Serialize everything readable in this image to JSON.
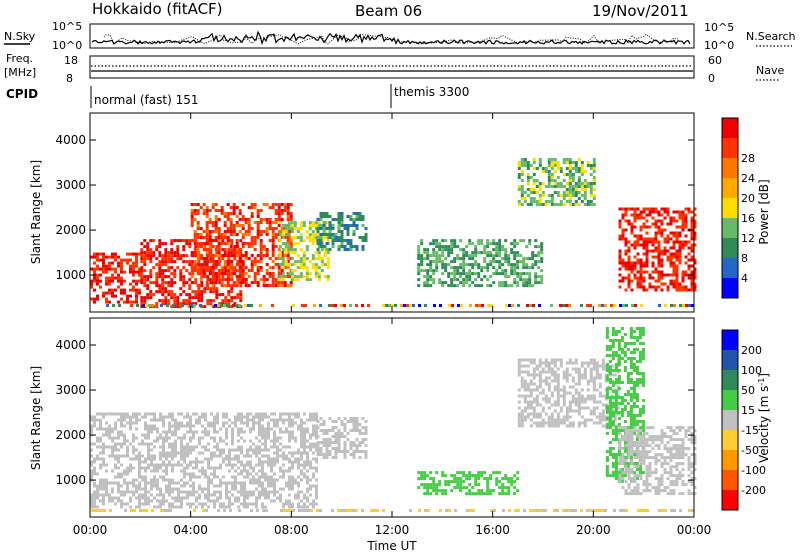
{
  "header": {
    "station": "Hokkaido (fitACF)",
    "beam": "Beam 06",
    "date": "19/Nov/2011"
  },
  "summary_labels": {
    "nsky": "N.Sky",
    "nsky_top": "10^5",
    "nsky_bottom": "10^0",
    "nsearch": "N.Search",
    "nsky_right_top": "10^5",
    "nsky_right_bottom": "10^0",
    "freq_line1": "Freq.",
    "freq_line2": "[MHz]",
    "freq_top": "18",
    "freq_bottom": "8",
    "nave": "Nave",
    "nave_top": "60",
    "nave_bottom": "0",
    "cpid": "CPID"
  },
  "cpid_modes": [
    {
      "label": "normal (fast) 151",
      "start_hour": 0
    },
    {
      "label": "themis 3300",
      "start_hour": 12
    }
  ],
  "colors": {
    "power": [
      "#0000ff",
      "#2266cc",
      "#2e8b57",
      "#66bb66",
      "#ffdd00",
      "#ffaa00",
      "#ff7700",
      "#ff3300",
      "#ee0000"
    ],
    "velocity": [
      "#0000ff",
      "#2255aa",
      "#2e8b57",
      "#44cc44",
      "#c0c0c0",
      "#ffcc33",
      "#ff9900",
      "#ff5500",
      "#ff0000"
    ]
  },
  "chart_data": [
    {
      "type": "heatmap",
      "title": "",
      "xlabel": "",
      "ylabel": "Slant Range [km]",
      "xlim": [
        0,
        24
      ],
      "ylim": [
        180,
        4600
      ],
      "xticks": [
        "00:00",
        "04:00",
        "08:00",
        "12:00",
        "16:00",
        "20:00",
        "00:00"
      ],
      "yticks": [
        1000,
        2000,
        3000,
        4000
      ],
      "colorbar": {
        "label": "Power [dB]",
        "ticks": [
          4,
          8,
          12,
          16,
          20,
          24,
          28
        ]
      },
      "regions": [
        {
          "x": [
            0,
            2
          ],
          "y": [
            400,
            1500
          ],
          "value": 28
        },
        {
          "x": [
            2,
            6
          ],
          "y": [
            300,
            1800
          ],
          "value": 28
        },
        {
          "x": [
            4,
            8
          ],
          "y": [
            800,
            2600
          ],
          "value": 26
        },
        {
          "x": [
            7.5,
            9.5
          ],
          "y": [
            900,
            2200
          ],
          "value": 12
        },
        {
          "x": [
            9,
            11
          ],
          "y": [
            1600,
            2400
          ],
          "value": 6
        },
        {
          "x": [
            13,
            18
          ],
          "y": [
            800,
            1800
          ],
          "value": 8
        },
        {
          "x": [
            17,
            20
          ],
          "y": [
            2600,
            3600
          ],
          "value": 10
        },
        {
          "x": [
            21,
            24
          ],
          "y": [
            700,
            2500
          ],
          "value": 28
        }
      ]
    },
    {
      "type": "heatmap",
      "title": "",
      "xlabel": "Time UT",
      "ylabel": "Slant Range [km]",
      "xlim": [
        0,
        24
      ],
      "ylim": [
        180,
        4600
      ],
      "xticks": [
        "00:00",
        "04:00",
        "08:00",
        "12:00",
        "16:00",
        "20:00",
        "00:00"
      ],
      "yticks": [
        1000,
        2000,
        3000,
        4000
      ],
      "colorbar": {
        "label": "Velocity [m s^-1]",
        "ticks": [
          200,
          100,
          50,
          15,
          -15,
          -50,
          -100,
          -200
        ]
      },
      "regions": [
        {
          "x": [
            0,
            9
          ],
          "y": [
            400,
            2500
          ],
          "value": 0
        },
        {
          "x": [
            9,
            11
          ],
          "y": [
            1500,
            2400
          ],
          "value": 0
        },
        {
          "x": [
            13,
            17
          ],
          "y": [
            700,
            1200
          ],
          "value": 30
        },
        {
          "x": [
            17,
            21
          ],
          "y": [
            2200,
            3700
          ],
          "value": 0
        },
        {
          "x": [
            20.5,
            22
          ],
          "y": [
            1000,
            4400
          ],
          "value": 30
        },
        {
          "x": [
            21,
            24
          ],
          "y": [
            700,
            2200
          ],
          "value": 0
        }
      ]
    }
  ]
}
